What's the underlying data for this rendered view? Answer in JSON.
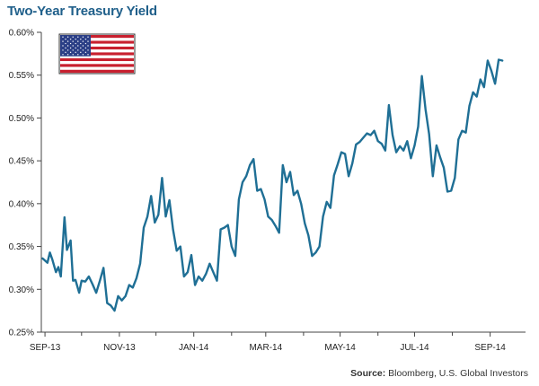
{
  "chart_data": {
    "type": "line",
    "title": "Two-Year Treasury Yield",
    "xlabel": "",
    "ylabel": "",
    "ylim": [
      0.25,
      0.6
    ],
    "y_ticks": [
      "0.25%",
      "0.30%",
      "0.35%",
      "0.40%",
      "0.45%",
      "0.50%",
      "0.55%",
      "0.60%"
    ],
    "y_tick_values": [
      0.25,
      0.3,
      0.35,
      0.4,
      0.45,
      0.5,
      0.55,
      0.6
    ],
    "x_ticks": [
      "SEP-13",
      "NOV-13",
      "JAN-14",
      "MAR-14",
      "MAY-14",
      "JUL-14",
      "SEP-14"
    ],
    "x_tick_dates": [
      "2013-09-01",
      "2013-11-01",
      "2014-01-01",
      "2014-03-01",
      "2014-05-01",
      "2014-07-01",
      "2014-09-01"
    ],
    "xlim": [
      "2013-08-29",
      "2014-09-30"
    ],
    "grid": false,
    "legend": "none",
    "series_color": "#1f6f95",
    "series": [
      {
        "x": [
          "2013-08-30",
          "2013-09-03",
          "2013-09-05",
          "2013-09-07",
          "2013-09-10",
          "2013-09-12",
          "2013-09-14",
          "2013-09-17",
          "2013-09-19",
          "2013-09-22",
          "2013-09-24",
          "2013-09-26",
          "2013-09-29",
          "2013-10-01",
          "2013-10-04",
          "2013-10-07",
          "2013-10-10",
          "2013-10-13",
          "2013-10-16",
          "2013-10-19",
          "2013-10-22",
          "2013-10-25",
          "2013-10-28",
          "2013-10-31",
          "2013-11-03",
          "2013-11-06",
          "2013-11-09",
          "2013-11-12",
          "2013-11-15",
          "2013-11-18",
          "2013-11-21",
          "2013-11-24",
          "2013-11-27",
          "2013-11-30",
          "2013-12-03",
          "2013-12-06",
          "2013-12-09",
          "2013-12-12",
          "2013-12-15",
          "2013-12-18",
          "2013-12-21",
          "2013-12-24",
          "2013-12-27",
          "2013-12-30",
          "2014-01-02",
          "2014-01-05",
          "2014-01-08",
          "2014-01-11",
          "2014-01-14",
          "2014-01-17",
          "2014-01-20",
          "2014-01-23",
          "2014-01-26",
          "2014-01-29",
          "2014-02-01",
          "2014-02-04",
          "2014-02-07",
          "2014-02-10",
          "2014-02-13",
          "2014-02-16",
          "2014-02-19",
          "2014-02-22",
          "2014-02-25",
          "2014-02-28",
          "2014-03-03",
          "2014-03-06",
          "2014-03-09",
          "2014-03-12",
          "2014-03-15",
          "2014-03-18",
          "2014-03-21",
          "2014-03-24",
          "2014-03-27",
          "2014-03-30",
          "2014-04-02",
          "2014-04-05",
          "2014-04-08",
          "2014-04-11",
          "2014-04-14",
          "2014-04-17",
          "2014-04-20",
          "2014-04-23",
          "2014-04-26",
          "2014-04-29",
          "2014-05-02",
          "2014-05-05",
          "2014-05-08",
          "2014-05-11",
          "2014-05-14",
          "2014-05-17",
          "2014-05-20",
          "2014-05-23",
          "2014-05-26",
          "2014-05-29",
          "2014-06-01",
          "2014-06-04",
          "2014-06-07",
          "2014-06-10",
          "2014-06-13",
          "2014-06-16",
          "2014-06-19",
          "2014-06-22",
          "2014-06-25",
          "2014-06-28",
          "2014-07-01",
          "2014-07-04",
          "2014-07-07",
          "2014-07-10",
          "2014-07-13",
          "2014-07-16",
          "2014-07-19",
          "2014-07-22",
          "2014-07-25",
          "2014-07-28",
          "2014-07-31",
          "2014-08-03",
          "2014-08-06",
          "2014-08-09",
          "2014-08-12",
          "2014-08-15",
          "2014-08-18",
          "2014-08-21",
          "2014-08-24",
          "2014-08-27",
          "2014-08-30",
          "2014-09-02",
          "2014-09-05",
          "2014-09-08",
          "2014-09-11"
        ],
        "values": [
          0.336,
          0.331,
          0.343,
          0.335,
          0.32,
          0.326,
          0.315,
          0.384,
          0.346,
          0.357,
          0.31,
          0.311,
          0.296,
          0.31,
          0.309,
          0.315,
          0.306,
          0.296,
          0.31,
          0.325,
          0.284,
          0.281,
          0.275,
          0.292,
          0.287,
          0.292,
          0.305,
          0.302,
          0.313,
          0.33,
          0.372,
          0.385,
          0.409,
          0.378,
          0.387,
          0.43,
          0.385,
          0.404,
          0.37,
          0.345,
          0.35,
          0.315,
          0.32,
          0.34,
          0.305,
          0.315,
          0.31,
          0.318,
          0.33,
          0.32,
          0.31,
          0.37,
          0.372,
          0.375,
          0.35,
          0.339,
          0.405,
          0.425,
          0.432,
          0.445,
          0.452,
          0.415,
          0.417,
          0.405,
          0.385,
          0.381,
          0.374,
          0.366,
          0.445,
          0.425,
          0.437,
          0.41,
          0.415,
          0.4,
          0.377,
          0.363,
          0.339,
          0.343,
          0.35,
          0.385,
          0.402,
          0.395,
          0.433,
          0.446,
          0.46,
          0.458,
          0.432,
          0.447,
          0.469,
          0.472,
          0.477,
          0.482,
          0.48,
          0.485,
          0.473,
          0.47,
          0.462,
          0.515,
          0.48,
          0.46,
          0.467,
          0.462,
          0.473,
          0.453,
          0.468,
          0.49,
          0.549,
          0.51,
          0.481,
          0.432,
          0.468,
          0.454,
          0.442,
          0.414,
          0.415,
          0.43,
          0.475,
          0.485,
          0.483,
          0.514,
          0.53,
          0.525,
          0.545,
          0.536,
          0.567,
          0.555,
          0.54,
          0.568,
          0.567
        ]
      }
    ]
  },
  "source": {
    "label": "Source:",
    "text": "Bloomberg, U.S. Global Investors"
  }
}
